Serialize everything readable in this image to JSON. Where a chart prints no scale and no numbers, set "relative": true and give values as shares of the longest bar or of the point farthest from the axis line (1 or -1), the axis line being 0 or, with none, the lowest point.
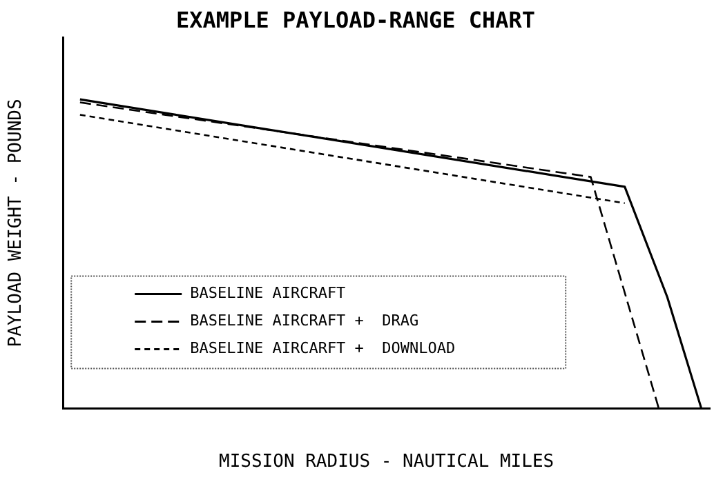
{
  "chart_data": {
    "type": "line",
    "title": "EXAMPLE PAYLOAD-RANGE CHART",
    "xlabel": "MISSION RADIUS - NAUTICAL MILES",
    "ylabel": "PAYLOAD WEIGHT - POUNDS",
    "relative": true,
    "categories": [
      null,
      null,
      null,
      null,
      null,
      null,
      null,
      null,
      null,
      null,
      null,
      null,
      null,
      null,
      null,
      null,
      null,
      null,
      null,
      null,
      null,
      null,
      null,
      null,
      null,
      null,
      null,
      null,
      null,
      null,
      null,
      null,
      null,
      null,
      null,
      null,
      null,
      null,
      null,
      null,
      null,
      null,
      null,
      null,
      null,
      null,
      null,
      null,
      null,
      null,
      null,
      null,
      null,
      null,
      null,
      null,
      null,
      null,
      null,
      null,
      null,
      null,
      null,
      null,
      null,
      null,
      null,
      null,
      null,
      null,
      null,
      null,
      null,
      null,
      null,
      null,
      null
    ],
    "grid": false,
    "legend": "bottom left",
    "marker": "none",
    "series": [
      {
        "name": "BASELINE AIRCRAFT",
        "color": "#000000",
        "line_style": "solid",
        "values": [
          null,
          null,
          1.0,
          null,
          null,
          null,
          null,
          null,
          null,
          null,
          null,
          null,
          null,
          null,
          null,
          null,
          null,
          null,
          null,
          null,
          null,
          null,
          null,
          null,
          null,
          null,
          null,
          null,
          null,
          null,
          null,
          null,
          null,
          null,
          null,
          null,
          null,
          null,
          null,
          null,
          null,
          null,
          null,
          null,
          null,
          null,
          null,
          null,
          null,
          null,
          null,
          null,
          null,
          null,
          null,
          null,
          null,
          null,
          null,
          null,
          null,
          null,
          null,
          null,
          null,
          null,
          0.717,
          null,
          null,
          null,
          null,
          0.36,
          null,
          null,
          null,
          0,
          null
        ]
      },
      {
        "name": "BASELINE AIRCRAFT +  DRAG",
        "color": "#000000",
        "line_style": "dashed",
        "values": [
          null,
          null,
          0.99,
          null,
          null,
          null,
          null,
          null,
          null,
          null,
          null,
          null,
          null,
          null,
          null,
          null,
          null,
          null,
          null,
          null,
          null,
          null,
          null,
          null,
          null,
          null,
          null,
          null,
          null,
          null,
          null,
          null,
          null,
          null,
          null,
          null,
          null,
          null,
          null,
          null,
          null,
          null,
          null,
          null,
          null,
          null,
          null,
          null,
          null,
          null,
          null,
          null,
          null,
          null,
          null,
          null,
          null,
          null,
          null,
          null,
          null,
          null,
          0.749,
          null,
          null,
          null,
          null,
          null,
          null,
          null,
          0,
          null,
          null,
          null,
          null,
          null,
          null
        ]
      },
      {
        "name": "BASELINE AIRCARFT +  DOWNLOAD",
        "color": "#000000",
        "line_style": "dotted",
        "values": [
          null,
          null,
          0.95,
          null,
          null,
          null,
          null,
          null,
          null,
          null,
          null,
          null,
          null,
          null,
          null,
          null,
          null,
          null,
          null,
          null,
          null,
          null,
          null,
          null,
          null,
          null,
          null,
          null,
          null,
          null,
          null,
          null,
          null,
          null,
          null,
          null,
          null,
          null,
          null,
          null,
          null,
          null,
          null,
          null,
          null,
          null,
          null,
          null,
          null,
          null,
          null,
          null,
          null,
          null,
          null,
          null,
          null,
          null,
          null,
          null,
          null,
          null,
          null,
          null,
          null,
          null,
          0.664,
          null,
          null,
          null,
          null,
          null,
          null,
          null,
          null,
          null,
          null
        ]
      }
    ]
  }
}
